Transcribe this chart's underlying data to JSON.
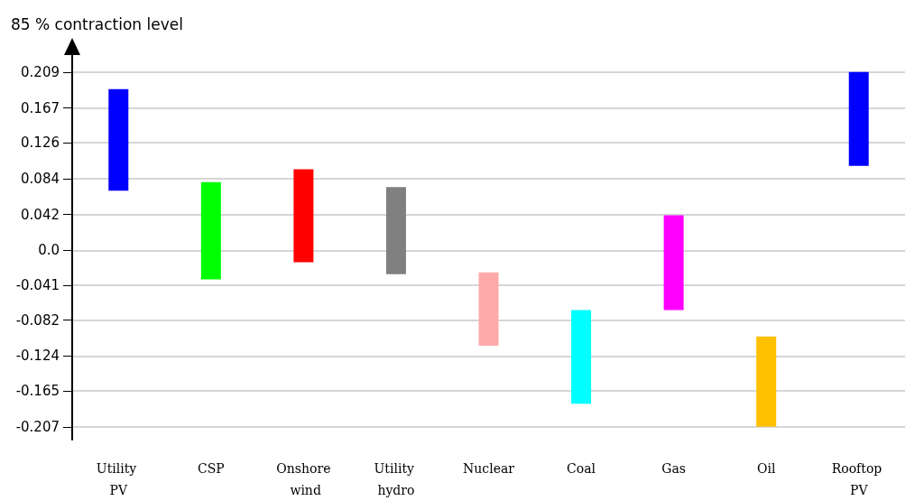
{
  "chart_data": {
    "type": "bar",
    "ylabel": "85 % contraction level",
    "categories": [
      "Utility PV",
      "CSP",
      "Onshore wind",
      "Utility hydro",
      "Nuclear",
      "Coal",
      "Gas",
      "Oil",
      "Rooftop PV"
    ],
    "values": [
      0.119,
      0.114,
      0.109,
      0.102,
      0.086,
      0.11,
      0.111,
      0.106,
      0.11
    ],
    "base": [
      0.07,
      -0.034,
      -0.014,
      -0.028,
      -0.112,
      -0.18,
      -0.07,
      -0.207,
      0.099
    ],
    "colors": [
      "#0000ff",
      "#00ff00",
      "#ff0000",
      "#808080",
      "#ffaaaa",
      "#00ffff",
      "#ff00ff",
      "#ffc000",
      "#0000ff"
    ],
    "ylim": [
      -0.222,
      0.23
    ],
    "yticks": [
      0.209,
      0.167,
      0.126,
      0.084,
      0.042,
      {
        "value": 0,
        "label": "0.0"
      },
      -0.041,
      -0.082,
      -0.124,
      -0.165,
      -0.207
    ],
    "grid": "y"
  }
}
